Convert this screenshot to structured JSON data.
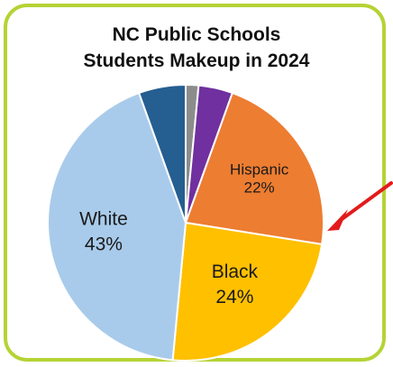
{
  "chart_data": {
    "type": "pie",
    "title_line1": "NC Public Schools",
    "title_line2": "Students Makeup in 2024",
    "slices": [
      {
        "label": "",
        "value": 1.5,
        "color": "#8c8c8c",
        "show_label": false
      },
      {
        "label": "",
        "value": 4.0,
        "color": "#7030a0",
        "show_label": false
      },
      {
        "label": "Hispanic",
        "value": 22,
        "pct_text": "22%",
        "color": "#ed7d31",
        "show_label": true
      },
      {
        "label": "Black",
        "value": 24,
        "pct_text": "24%",
        "color": "#ffc000",
        "show_label": true
      },
      {
        "label": "White",
        "value": 43,
        "pct_text": "43%",
        "color": "#a9cbeb",
        "show_label": true
      },
      {
        "label": "",
        "value": 5.5,
        "color": "#255e91",
        "show_label": false
      }
    ]
  },
  "colors": {
    "frame_border": "#b5d335",
    "arrow": "#e31b1b",
    "slice_separator": "#ffffff"
  },
  "annotation": {
    "arrow_points_to": "Black"
  }
}
